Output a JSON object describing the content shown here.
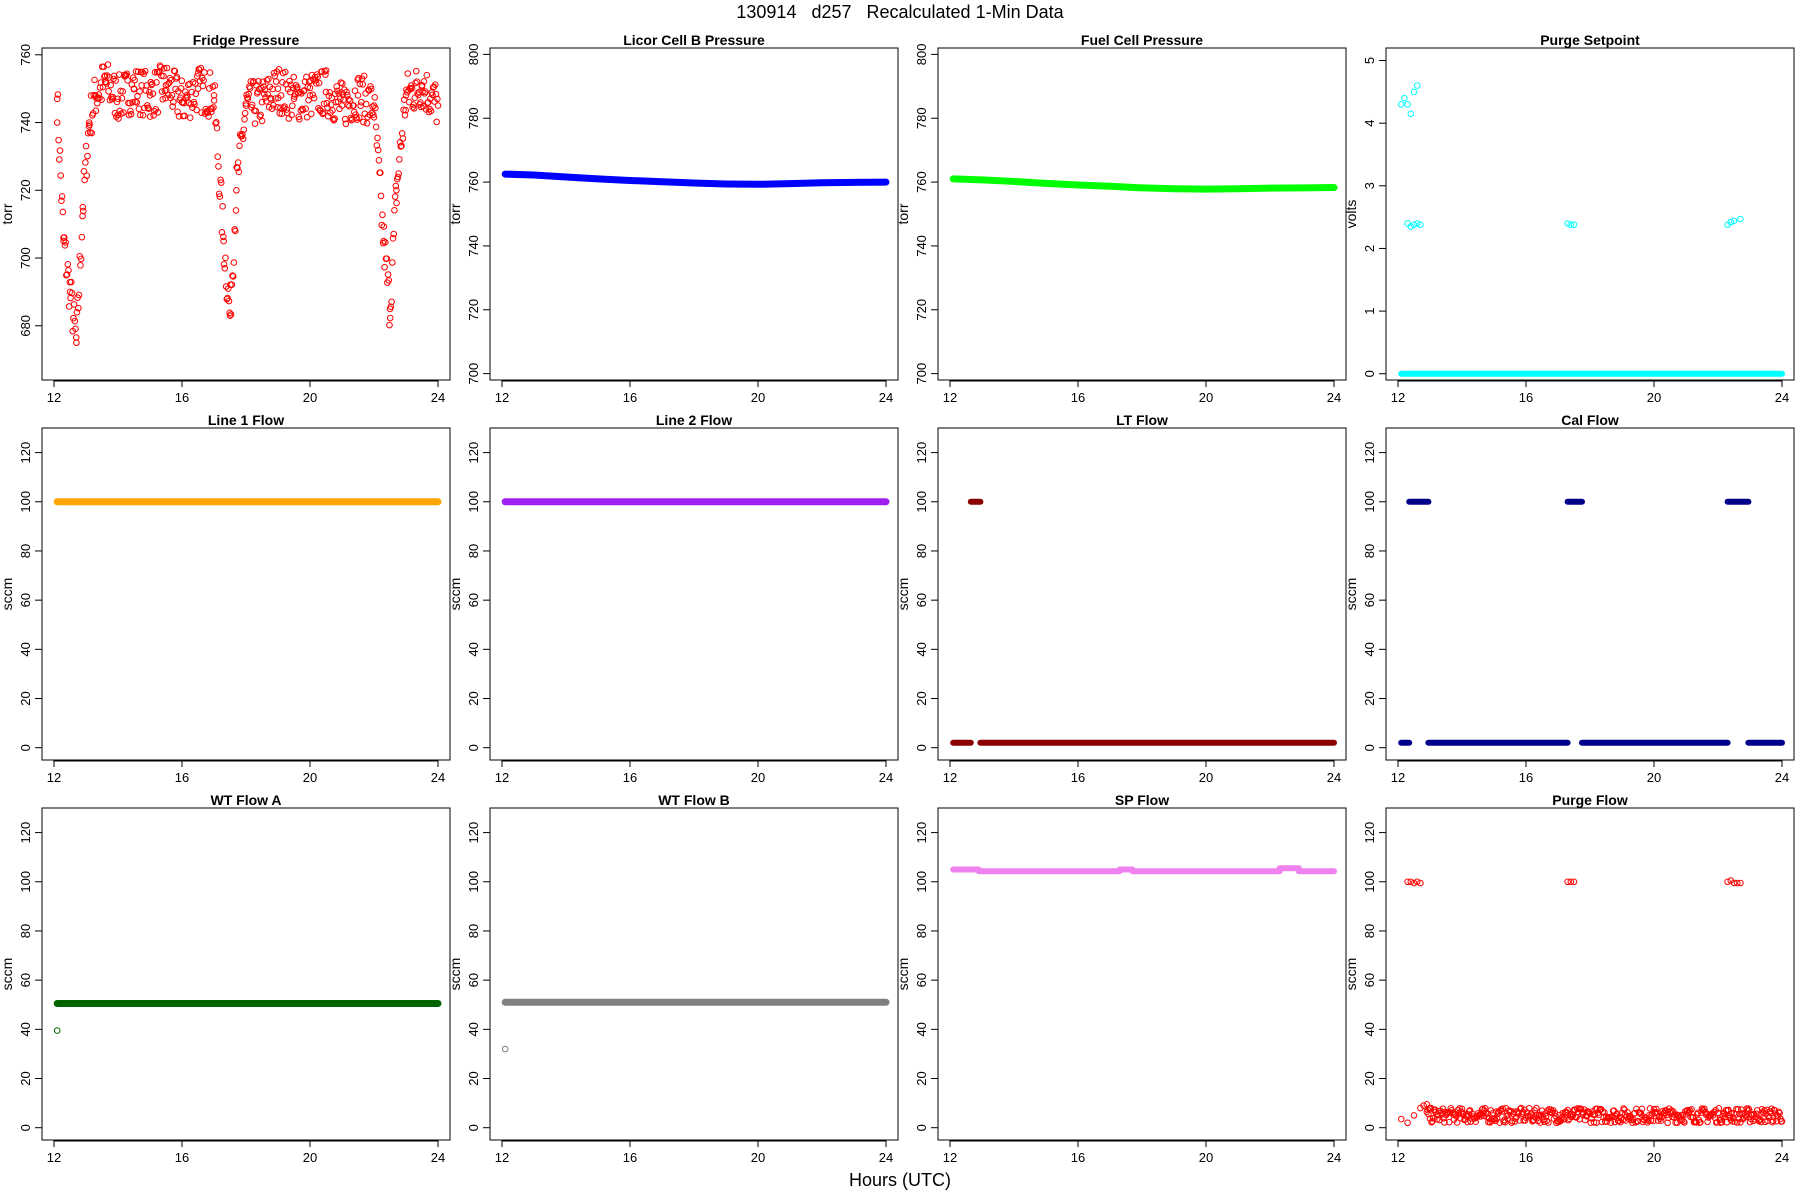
{
  "figure": {
    "title": "130914   d257   Recalculated 1-Min Data",
    "xlabel": "Hours (UTC)"
  },
  "chart_data": [
    {
      "type": "scatter",
      "title": "Fridge Pressure",
      "ylabel": "torr",
      "color": "#ff0000",
      "xlim": [
        12,
        24
      ],
      "ylim": [
        664,
        762
      ],
      "xticks": [
        12,
        16,
        20,
        24
      ],
      "yticks": [
        680,
        700,
        720,
        740,
        760
      ],
      "marker": "open-circle",
      "x": [
        12.1,
        12.3,
        12.5,
        12.7,
        12.9,
        13.1,
        13.3,
        13.6,
        14.0,
        14.5,
        15.0,
        15.5,
        16.0,
        16.5,
        17.0,
        17.3,
        17.5,
        17.7,
        18.0,
        18.5,
        19.0,
        19.5,
        20.0,
        20.5,
        21.0,
        21.5,
        22.0,
        22.3,
        22.5,
        22.7,
        23.0,
        23.5,
        24.0
      ],
      "y": [
        747,
        705,
        690,
        675,
        715,
        740,
        748,
        752,
        747,
        750,
        748,
        751,
        746,
        750,
        748,
        705,
        683,
        720,
        745,
        746,
        750,
        747,
        748,
        749,
        745,
        748,
        745,
        705,
        685,
        720,
        748,
        751,
        745
      ]
    },
    {
      "type": "scatter",
      "title": "Licor Cell B Pressure",
      "ylabel": "torr",
      "color": "#0000ff",
      "xlim": [
        12,
        24
      ],
      "ylim": [
        698,
        802
      ],
      "xticks": [
        12,
        16,
        20,
        24
      ],
      "yticks": [
        700,
        720,
        740,
        760,
        780,
        800
      ],
      "marker": "filled-line",
      "x": [
        12.1,
        13,
        14,
        15,
        16,
        17,
        18,
        19,
        20,
        21,
        22,
        23,
        24
      ],
      "y": [
        762.5,
        762.2,
        761.6,
        761.0,
        760.5,
        760.1,
        759.7,
        759.4,
        759.3,
        759.5,
        759.8,
        759.9,
        760.0
      ]
    },
    {
      "type": "scatter",
      "title": "Fuel Cell Pressure",
      "ylabel": "torr",
      "color": "#00ff00",
      "xlim": [
        12,
        24
      ],
      "ylim": [
        698,
        802
      ],
      "xticks": [
        12,
        16,
        20,
        24
      ],
      "yticks": [
        700,
        720,
        740,
        760,
        780,
        800
      ],
      "marker": "filled-line",
      "x": [
        12.1,
        13,
        14,
        15,
        16,
        17,
        18,
        19,
        20,
        21,
        22,
        23,
        24
      ],
      "y": [
        761.0,
        760.7,
        760.2,
        759.6,
        759.1,
        758.7,
        758.2,
        757.9,
        757.8,
        757.9,
        758.1,
        758.2,
        758.3
      ]
    },
    {
      "type": "scatter",
      "title": "Purge Setpoint",
      "ylabel": "volts",
      "color": "#00ffff",
      "xlim": [
        12,
        24
      ],
      "ylim": [
        -0.1,
        5.2
      ],
      "xticks": [
        12,
        16,
        20,
        24
      ],
      "yticks": [
        0,
        1,
        2,
        3,
        4,
        5
      ],
      "marker": "open-circle",
      "x": [
        12.1,
        12.2,
        12.3,
        12.3,
        12.4,
        12.4,
        12.5,
        12.5,
        12.6,
        12.6,
        12.7,
        17.3,
        17.4,
        17.5,
        22.3,
        22.4,
        22.5,
        22.7
      ],
      "y": [
        4.3,
        4.4,
        4.3,
        2.4,
        4.15,
        2.35,
        4.5,
        2.38,
        4.6,
        2.4,
        2.38,
        2.4,
        2.38,
        2.38,
        2.38,
        2.42,
        2.44,
        2.47
      ],
      "baseline": {
        "value": 0,
        "from": 12.1,
        "to": 24
      }
    },
    {
      "type": "scatter",
      "title": "Line 1 Flow",
      "ylabel": "sccm",
      "color": "#ffa500",
      "xlim": [
        12,
        24
      ],
      "ylim": [
        -5,
        130
      ],
      "xticks": [
        12,
        16,
        20,
        24
      ],
      "yticks": [
        0,
        20,
        40,
        60,
        80,
        100,
        120
      ],
      "marker": "filled-line",
      "x": [
        12.1,
        24
      ],
      "y": [
        100,
        100
      ]
    },
    {
      "type": "scatter",
      "title": "Line 2 Flow",
      "ylabel": "sccm",
      "color": "#a020f0",
      "xlim": [
        12,
        24
      ],
      "ylim": [
        -5,
        130
      ],
      "xticks": [
        12,
        16,
        20,
        24
      ],
      "yticks": [
        0,
        20,
        40,
        60,
        80,
        100,
        120
      ],
      "marker": "filled-line",
      "x": [
        12.1,
        24
      ],
      "y": [
        100,
        100
      ]
    },
    {
      "type": "scatter",
      "title": "LT Flow",
      "ylabel": "sccm",
      "color": "#8b0000",
      "xlim": [
        12,
        24
      ],
      "ylim": [
        -5,
        130
      ],
      "xticks": [
        12,
        16,
        20,
        24
      ],
      "yticks": [
        0,
        20,
        40,
        60,
        80,
        100,
        120
      ],
      "marker": "segments",
      "segments": [
        {
          "x": [
            12.1,
            12.65
          ],
          "y": 2
        },
        {
          "x": 12.65,
          "x2": 12.95,
          "y": 100
        },
        {
          "x": 12.95,
          "x2": 24,
          "y": 2
        }
      ]
    },
    {
      "type": "scatter",
      "title": "Cal Flow",
      "ylabel": "sccm",
      "color": "#00008b",
      "xlim": [
        12,
        24
      ],
      "ylim": [
        -5,
        130
      ],
      "xticks": [
        12,
        16,
        20,
        24
      ],
      "yticks": [
        0,
        20,
        40,
        60,
        80,
        100,
        120
      ],
      "marker": "segments",
      "segments": [
        {
          "x": 12.1,
          "x2": 12.35,
          "y": 2
        },
        {
          "x": 12.35,
          "x2": 12.95,
          "y": 100
        },
        {
          "x": 12.95,
          "x2": 17.3,
          "y": 2
        },
        {
          "x": 17.3,
          "x2": 17.75,
          "y": 100
        },
        {
          "x": 17.75,
          "x2": 22.3,
          "y": 2
        },
        {
          "x": 22.3,
          "x2": 22.95,
          "y": 100
        },
        {
          "x": 22.95,
          "x2": 24,
          "y": 2
        }
      ]
    },
    {
      "type": "scatter",
      "title": "WT Flow A",
      "ylabel": "sccm",
      "color": "#006400",
      "xlim": [
        12,
        24
      ],
      "ylim": [
        -5,
        130
      ],
      "xticks": [
        12,
        16,
        20,
        24
      ],
      "yticks": [
        0,
        20,
        40,
        60,
        80,
        100,
        120
      ],
      "marker": "filled-line",
      "x": [
        12.1,
        24
      ],
      "y": [
        50.5,
        50.5
      ],
      "outliers": {
        "x": [
          12.1
        ],
        "y": [
          39.5
        ]
      }
    },
    {
      "type": "scatter",
      "title": "WT Flow B",
      "ylabel": "sccm",
      "color": "#808080",
      "xlim": [
        12,
        24
      ],
      "ylim": [
        -5,
        130
      ],
      "xticks": [
        12,
        16,
        20,
        24
      ],
      "yticks": [
        0,
        20,
        40,
        60,
        80,
        100,
        120
      ],
      "marker": "filled-line",
      "x": [
        12.1,
        24
      ],
      "y": [
        51,
        51
      ],
      "outliers": {
        "x": [
          12.1
        ],
        "y": [
          32
        ]
      }
    },
    {
      "type": "scatter",
      "title": "SP Flow",
      "ylabel": "sccm",
      "color": "#ee82ee",
      "xlim": [
        12,
        24
      ],
      "ylim": [
        -5,
        130
      ],
      "xticks": [
        12,
        16,
        20,
        24
      ],
      "yticks": [
        0,
        20,
        40,
        60,
        80,
        100,
        120
      ],
      "marker": "segments",
      "segments": [
        {
          "x": 12.1,
          "x2": 12.9,
          "y": 105
        },
        {
          "x": 12.9,
          "x2": 17.3,
          "y": 104.3
        },
        {
          "x": 17.3,
          "x2": 17.7,
          "y": 105
        },
        {
          "x": 17.7,
          "x2": 22.3,
          "y": 104.3
        },
        {
          "x": 22.3,
          "x2": 22.9,
          "y": 105.5
        },
        {
          "x": 22.9,
          "x2": 24,
          "y": 104.3
        }
      ]
    },
    {
      "type": "scatter",
      "title": "Purge Flow",
      "ylabel": "sccm",
      "color": "#ff0000",
      "xlim": [
        12,
        24
      ],
      "ylim": [
        -5,
        130
      ],
      "xticks": [
        12,
        16,
        20,
        24
      ],
      "yticks": [
        0,
        20,
        40,
        60,
        80,
        100,
        120
      ],
      "marker": "open-circle",
      "x": [
        12.3,
        12.4,
        12.5,
        12.6,
        12.7,
        17.3,
        17.4,
        17.5,
        22.3,
        22.4,
        22.5,
        22.6,
        22.7,
        12.1,
        12.3,
        12.5,
        12.7,
        12.8,
        12.9,
        13.0
      ],
      "y": [
        100,
        100,
        99.5,
        100,
        99.5,
        100,
        100,
        100,
        100,
        100.5,
        99.5,
        99.5,
        99.5,
        3.5,
        2,
        5,
        8,
        9,
        9.5,
        8
      ],
      "noise_band": {
        "from": 12.9,
        "to": 24,
        "center": 5,
        "spread": 3
      }
    }
  ]
}
